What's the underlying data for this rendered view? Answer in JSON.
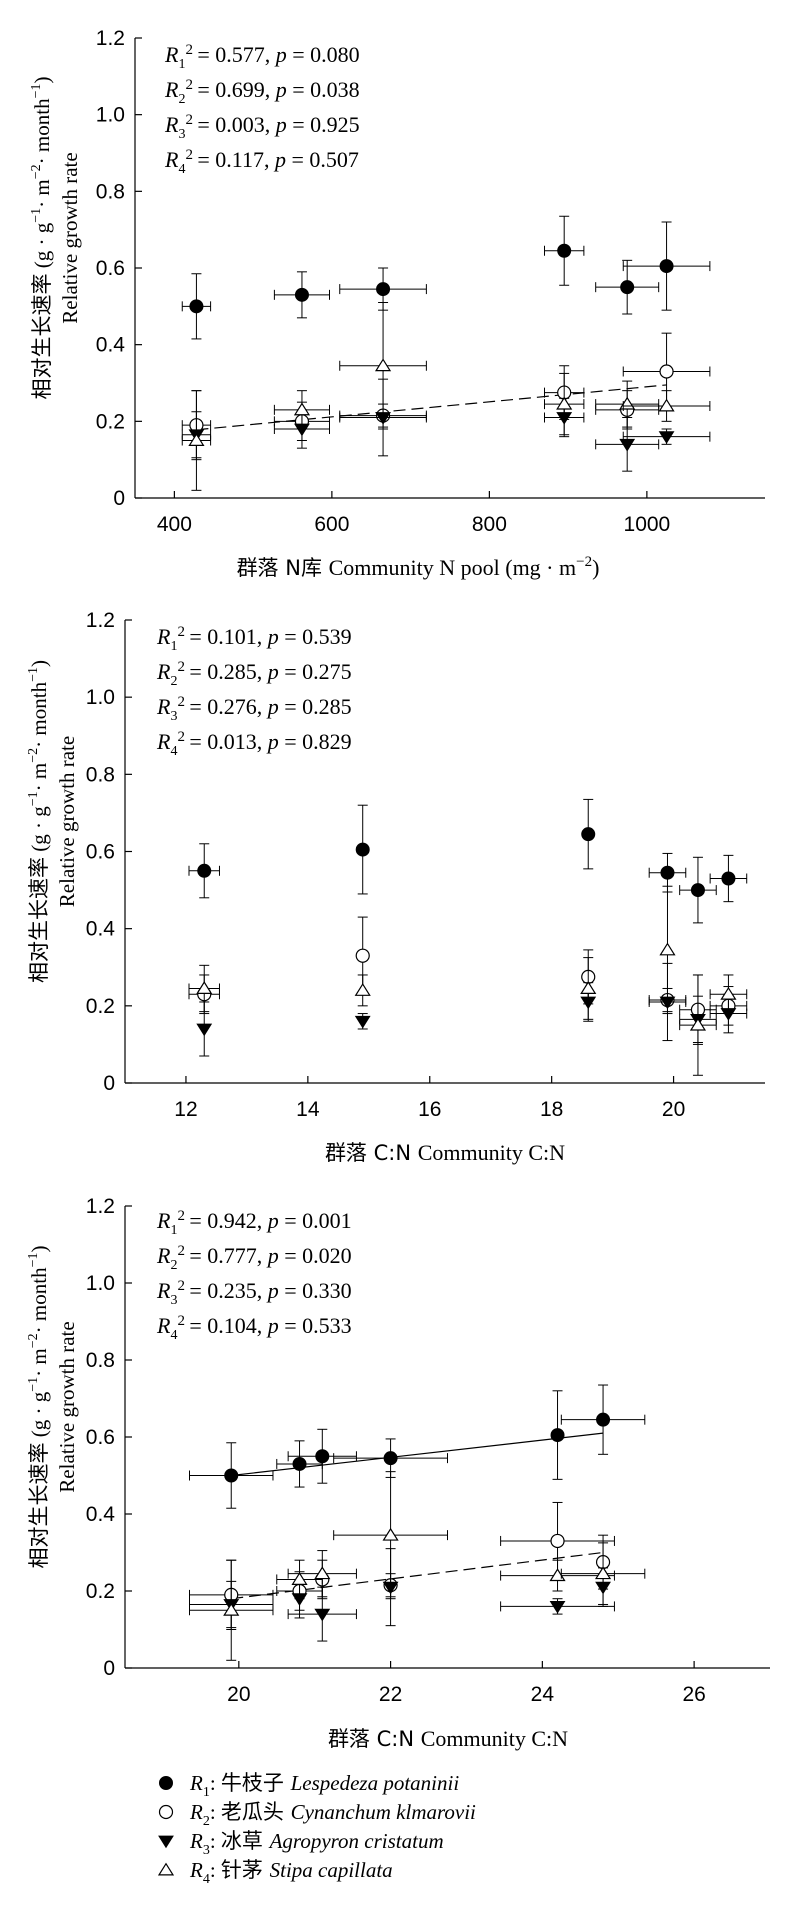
{
  "y_axis_label_cn": "相对生长速率",
  "y_axis_label_en": "Relative growth rate",
  "y_axis_unit": "(g · g",
  "series_labels": {
    "R1": {
      "id": "R",
      "sub": "1",
      "cn": "牛枝子",
      "latin": "Lespedeza potaninii",
      "marker": "filled-circle"
    },
    "R2": {
      "id": "R",
      "sub": "2",
      "cn": "老瓜头",
      "latin": "Cynanchum klmarovii",
      "marker": "open-circle"
    },
    "R3": {
      "id": "R",
      "sub": "3",
      "cn": "冰草",
      "latin": "Agropyron cristatum",
      "marker": "filled-triangle-down"
    },
    "R4": {
      "id": "R",
      "sub": "4",
      "cn": "针茅",
      "latin": "Stipa capillata",
      "marker": "open-triangle-up"
    }
  },
  "chart_data": [
    {
      "type": "scatter",
      "xlabel_cn": "群落 N库",
      "xlabel_en": "Community N pool (mg · m",
      "xlim": [
        350,
        1150
      ],
      "ylim": [
        0,
        1.2
      ],
      "xticks": [
        400,
        600,
        800,
        1000
      ],
      "yticks": [
        0,
        0.2,
        0.4,
        0.6,
        0.8,
        1.0,
        1.2
      ],
      "stats": [
        {
          "r2": "0.577",
          "p": "0.080"
        },
        {
          "r2": "0.699",
          "p": "0.038"
        },
        {
          "r2": "0.003",
          "p": "0.925"
        },
        {
          "r2": "0.117",
          "p": "0.507"
        }
      ],
      "series": [
        {
          "key": "R1",
          "points": [
            {
              "x": 428,
              "y": 0.5,
              "xe": 18,
              "ye": 0.085
            },
            {
              "x": 562,
              "y": 0.53,
              "xe": 35,
              "ye": 0.06
            },
            {
              "x": 665,
              "y": 0.545,
              "xe": 55,
              "ye": 0.055
            },
            {
              "x": 895,
              "y": 0.645,
              "xe": 25,
              "ye": 0.09
            },
            {
              "x": 975,
              "y": 0.55,
              "xe": 40,
              "ye": 0.07
            },
            {
              "x": 1025,
              "y": 0.605,
              "xe": 55,
              "ye": 0.115
            }
          ]
        },
        {
          "key": "R2",
          "points": [
            {
              "x": 428,
              "y": 0.19,
              "xe": 18,
              "ye": 0.09
            },
            {
              "x": 562,
              "y": 0.2,
              "xe": 35,
              "ye": 0.05
            },
            {
              "x": 665,
              "y": 0.215,
              "xe": 55,
              "ye": 0.03
            },
            {
              "x": 895,
              "y": 0.275,
              "xe": 25,
              "ye": 0.07
            },
            {
              "x": 975,
              "y": 0.23,
              "xe": 40,
              "ye": 0.05
            },
            {
              "x": 1025,
              "y": 0.33,
              "xe": 55,
              "ye": 0.1
            }
          ]
        },
        {
          "key": "R3",
          "points": [
            {
              "x": 428,
              "y": 0.165,
              "xe": 18,
              "ye": 0.06
            },
            {
              "x": 562,
              "y": 0.18,
              "xe": 35,
              "ye": 0.05
            },
            {
              "x": 665,
              "y": 0.21,
              "xe": 55,
              "ye": 0.1
            },
            {
              "x": 895,
              "y": 0.21,
              "xe": 25,
              "ye": 0.05
            },
            {
              "x": 975,
              "y": 0.14,
              "xe": 40,
              "ye": 0.07
            },
            {
              "x": 1025,
              "y": 0.16,
              "xe": 55,
              "ye": 0.02
            }
          ]
        },
        {
          "key": "R4",
          "points": [
            {
              "x": 428,
              "y": 0.15,
              "xe": 18,
              "ye": 0.13
            },
            {
              "x": 562,
              "y": 0.23,
              "xe": 35,
              "ye": 0.05
            },
            {
              "x": 665,
              "y": 0.345,
              "xe": 55,
              "ye": 0.165
            },
            {
              "x": 895,
              "y": 0.245,
              "xe": 25,
              "ye": 0.08
            },
            {
              "x": 975,
              "y": 0.245,
              "xe": 40,
              "ye": 0.06
            },
            {
              "x": 1025,
              "y": 0.24,
              "xe": 55,
              "ye": 0.04
            }
          ]
        }
      ],
      "fits": [
        {
          "key": "R2",
          "style": "dashed",
          "x": [
            428,
            1025
          ],
          "y": [
            0.178,
            0.295
          ]
        }
      ]
    },
    {
      "type": "scatter",
      "xlabel_cn": "群落 C:N",
      "xlabel_en": "Community C:N",
      "xlim": [
        11,
        21.5
      ],
      "ylim": [
        0,
        1.2
      ],
      "xticks": [
        12,
        14,
        16,
        18,
        20
      ],
      "yticks": [
        0,
        0.2,
        0.4,
        0.6,
        0.8,
        1.0,
        1.2
      ],
      "stats": [
        {
          "r2": "0.101",
          "p": "0.539"
        },
        {
          "r2": "0.285",
          "p": "0.275"
        },
        {
          "r2": "0.276",
          "p": "0.285"
        },
        {
          "r2": "0.013",
          "p": "0.829"
        }
      ],
      "series": [
        {
          "key": "R1",
          "points": [
            {
              "x": 12.3,
              "y": 0.55,
              "xe": 0.25,
              "ye": 0.07
            },
            {
              "x": 14.9,
              "y": 0.605,
              "xe": 0.0,
              "ye": 0.115
            },
            {
              "x": 18.6,
              "y": 0.645,
              "xe": 0.0,
              "ye": 0.09
            },
            {
              "x": 19.9,
              "y": 0.545,
              "xe": 0.3,
              "ye": 0.05
            },
            {
              "x": 20.4,
              "y": 0.5,
              "xe": 0.3,
              "ye": 0.085
            },
            {
              "x": 20.9,
              "y": 0.53,
              "xe": 0.3,
              "ye": 0.06
            }
          ]
        },
        {
          "key": "R2",
          "points": [
            {
              "x": 12.3,
              "y": 0.23,
              "xe": 0.25,
              "ye": 0.05
            },
            {
              "x": 14.9,
              "y": 0.33,
              "xe": 0.0,
              "ye": 0.1
            },
            {
              "x": 18.6,
              "y": 0.275,
              "xe": 0.0,
              "ye": 0.07
            },
            {
              "x": 19.9,
              "y": 0.215,
              "xe": 0.3,
              "ye": 0.03
            },
            {
              "x": 20.4,
              "y": 0.19,
              "xe": 0.3,
              "ye": 0.09
            },
            {
              "x": 20.9,
              "y": 0.2,
              "xe": 0.3,
              "ye": 0.05
            }
          ]
        },
        {
          "key": "R3",
          "points": [
            {
              "x": 12.3,
              "y": 0.14,
              "xe": 0.0,
              "ye": 0.07
            },
            {
              "x": 14.9,
              "y": 0.16,
              "xe": 0.0,
              "ye": 0.02
            },
            {
              "x": 18.6,
              "y": 0.21,
              "xe": 0.0,
              "ye": 0.05
            },
            {
              "x": 19.9,
              "y": 0.21,
              "xe": 0.3,
              "ye": 0.1
            },
            {
              "x": 20.4,
              "y": 0.165,
              "xe": 0.3,
              "ye": 0.06
            },
            {
              "x": 20.9,
              "y": 0.18,
              "xe": 0.3,
              "ye": 0.05
            }
          ]
        },
        {
          "key": "R4",
          "points": [
            {
              "x": 12.3,
              "y": 0.245,
              "xe": 0.25,
              "ye": 0.06
            },
            {
              "x": 14.9,
              "y": 0.24,
              "xe": 0.0,
              "ye": 0.04
            },
            {
              "x": 18.6,
              "y": 0.245,
              "xe": 0.0,
              "ye": 0.08
            },
            {
              "x": 19.9,
              "y": 0.345,
              "xe": 0.0,
              "ye": 0.165
            },
            {
              "x": 20.4,
              "y": 0.15,
              "xe": 0.3,
              "ye": 0.13
            },
            {
              "x": 20.9,
              "y": 0.23,
              "xe": 0.3,
              "ye": 0.05
            }
          ]
        }
      ],
      "fits": []
    },
    {
      "type": "scatter",
      "xlabel_cn": "群落 C:N",
      "xlabel_en": "Community C:N",
      "xlim": [
        18.5,
        27
      ],
      "ylim": [
        0,
        1.2
      ],
      "xticks": [
        20,
        22,
        24,
        26
      ],
      "yticks": [
        0,
        0.2,
        0.4,
        0.6,
        0.8,
        1.0,
        1.2
      ],
      "stats": [
        {
          "r2": "0.942",
          "p": "0.001"
        },
        {
          "r2": "0.777",
          "p": "0.020"
        },
        {
          "r2": "0.235",
          "p": "0.330"
        },
        {
          "r2": "0.104",
          "p": "0.533"
        }
      ],
      "series": [
        {
          "key": "R1",
          "points": [
            {
              "x": 19.9,
              "y": 0.5,
              "xe": 0.55,
              "ye": 0.085
            },
            {
              "x": 20.8,
              "y": 0.53,
              "xe": 0.3,
              "ye": 0.06
            },
            {
              "x": 21.1,
              "y": 0.55,
              "xe": 0.45,
              "ye": 0.07
            },
            {
              "x": 22.0,
              "y": 0.545,
              "xe": 0.75,
              "ye": 0.05
            },
            {
              "x": 24.2,
              "y": 0.605,
              "xe": 0.0,
              "ye": 0.115
            },
            {
              "x": 24.8,
              "y": 0.645,
              "xe": 0.55,
              "ye": 0.09
            }
          ]
        },
        {
          "key": "R2",
          "points": [
            {
              "x": 19.9,
              "y": 0.19,
              "xe": 0.55,
              "ye": 0.09
            },
            {
              "x": 20.8,
              "y": 0.2,
              "xe": 0.3,
              "ye": 0.05
            },
            {
              "x": 21.1,
              "y": 0.23,
              "xe": 0.0,
              "ye": 0.05
            },
            {
              "x": 22.0,
              "y": 0.215,
              "xe": 0.0,
              "ye": 0.03
            },
            {
              "x": 24.2,
              "y": 0.33,
              "xe": 0.75,
              "ye": 0.1
            },
            {
              "x": 24.8,
              "y": 0.275,
              "xe": 0.0,
              "ye": 0.07
            }
          ]
        },
        {
          "key": "R3",
          "points": [
            {
              "x": 19.9,
              "y": 0.165,
              "xe": 0.55,
              "ye": 0.06
            },
            {
              "x": 20.8,
              "y": 0.18,
              "xe": 0.0,
              "ye": 0.05
            },
            {
              "x": 21.1,
              "y": 0.14,
              "xe": 0.45,
              "ye": 0.07
            },
            {
              "x": 22.0,
              "y": 0.21,
              "xe": 0.0,
              "ye": 0.1
            },
            {
              "x": 24.2,
              "y": 0.16,
              "xe": 0.75,
              "ye": 0.02
            },
            {
              "x": 24.8,
              "y": 0.21,
              "xe": 0.0,
              "ye": 0.05
            }
          ]
        },
        {
          "key": "R4",
          "points": [
            {
              "x": 19.9,
              "y": 0.15,
              "xe": 0.55,
              "ye": 0.13
            },
            {
              "x": 20.8,
              "y": 0.23,
              "xe": 0.3,
              "ye": 0.05
            },
            {
              "x": 21.1,
              "y": 0.245,
              "xe": 0.45,
              "ye": 0.06
            },
            {
              "x": 22.0,
              "y": 0.345,
              "xe": 0.75,
              "ye": 0.165
            },
            {
              "x": 24.2,
              "y": 0.24,
              "xe": 0.75,
              "ye": 0.04
            },
            {
              "x": 24.8,
              "y": 0.245,
              "xe": 0.55,
              "ye": 0.08
            }
          ]
        }
      ],
      "fits": [
        {
          "key": "R1",
          "style": "solid",
          "x": [
            19.9,
            24.8
          ],
          "y": [
            0.5,
            0.61
          ]
        },
        {
          "key": "R2",
          "style": "dashed",
          "x": [
            19.9,
            24.8
          ],
          "y": [
            0.18,
            0.3
          ]
        }
      ]
    }
  ]
}
